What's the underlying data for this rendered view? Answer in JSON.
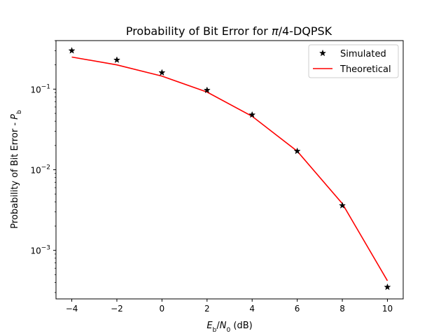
{
  "chart_data": {
    "type": "line",
    "title": "Probability of Bit Error for π/4-DQPSK",
    "xlabel": "E_b/N_0 (dB)",
    "ylabel": "Probability of Bit Error - P_b",
    "x": [
      -4,
      -2,
      0,
      2,
      4,
      6,
      8,
      10
    ],
    "series": [
      {
        "name": "Simulated",
        "style": "markers",
        "marker": "star",
        "color": "#000000",
        "values": [
          0.3,
          0.23,
          0.16,
          0.097,
          0.048,
          0.017,
          0.0036,
          0.00035
        ]
      },
      {
        "name": "Theoretical",
        "style": "line",
        "color": "#ff0000",
        "values": [
          0.25,
          0.2,
          0.145,
          0.092,
          0.046,
          0.017,
          0.0038,
          0.00042
        ]
      }
    ],
    "xlim": [
      -4.7,
      10.7
    ],
    "ylim": [
      0.00025,
      0.4
    ],
    "yscale": "log",
    "xticks": [
      -4,
      -2,
      0,
      2,
      4,
      6,
      8,
      10
    ],
    "yticks": [
      0.001,
      0.01,
      0.1
    ],
    "grid": false,
    "legend_position": "top-right"
  }
}
